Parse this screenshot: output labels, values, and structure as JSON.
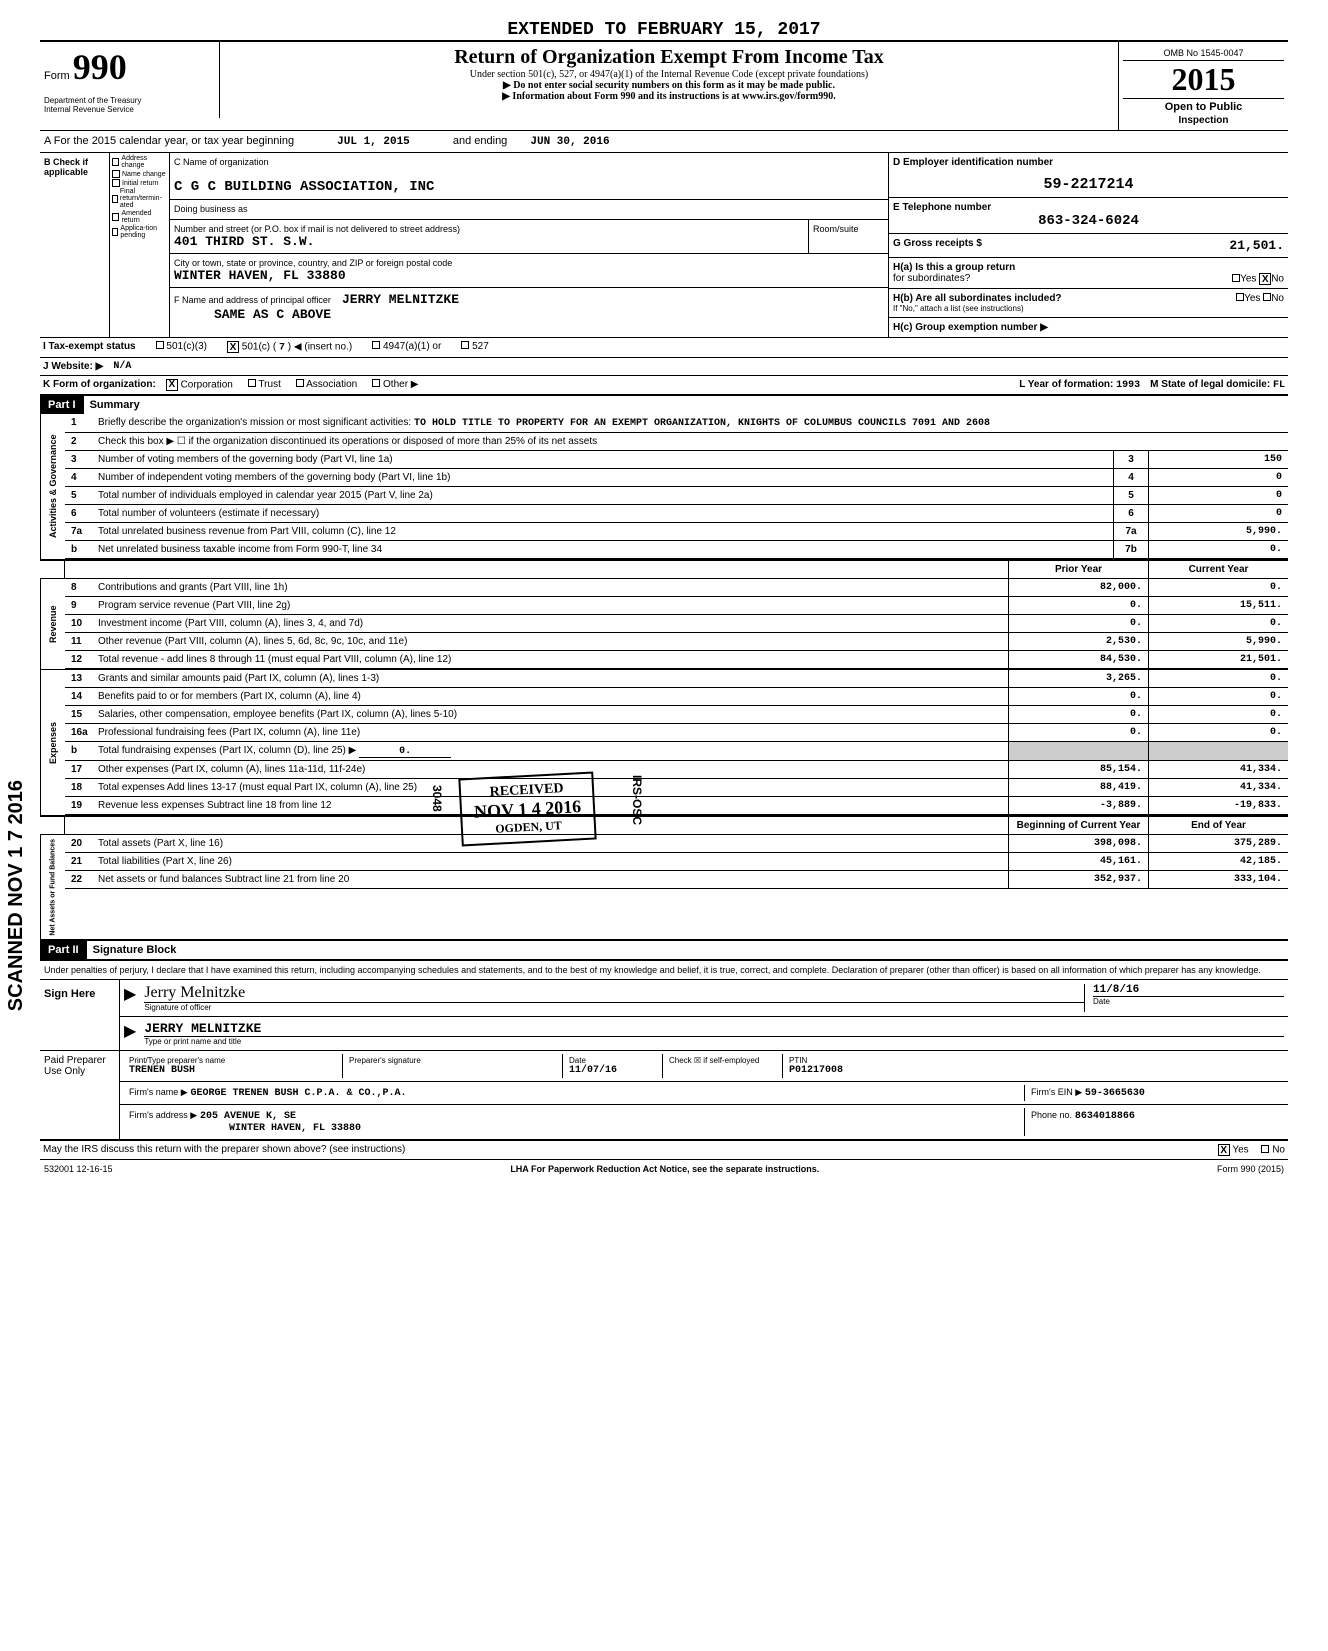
{
  "extended_notice": "EXTENDED TO FEBRUARY 15, 2017",
  "form": {
    "number": "990",
    "form_label": "Form",
    "title": "Return of Organization Exempt From Income Tax",
    "subtitle": "Under section 501(c), 527, or 4947(a)(1) of the Internal Revenue Code (except private foundations)",
    "ssn_notice": "▶ Do not enter social security numbers on this form as it may be made public.",
    "info_notice": "▶ Information about Form 990 and its instructions is at www.irs.gov/form990.",
    "dept": "Department of the Treasury",
    "irs": "Internal Revenue Service",
    "omb": "OMB No 1545-0047",
    "year": "2015",
    "open_public": "Open to Public",
    "inspection": "Inspection"
  },
  "tax_year": {
    "prefix": "A For the 2015 calendar year, or tax year beginning",
    "begin": "JUL 1, 2015",
    "mid": "and ending",
    "end": "JUN 30, 2016"
  },
  "section_b": {
    "check_label": "B Check if applicable",
    "checkboxes": [
      "Address change",
      "Name change",
      "Initial return",
      "Final return/termin-ated",
      "Amended return",
      "Applica-tion pending"
    ],
    "c_label": "C Name of organization",
    "org_name": "C G C BUILDING ASSOCIATION, INC",
    "dba_label": "Doing business as",
    "street_label": "Number and street (or P.O. box if mail is not delivered to street address)",
    "street": "401 THIRD ST. S.W.",
    "room_label": "Room/suite",
    "city_label": "City or town, state or province, country, and ZIP or foreign postal code",
    "city": "WINTER HAVEN, FL  33880",
    "f_label": "F Name and address of principal officer",
    "officer": "JERRY MELNITZKE",
    "officer_addr": "SAME AS C ABOVE"
  },
  "section_d": {
    "d_label": "D Employer identification number",
    "ein": "59-2217214",
    "e_label": "E Telephone number",
    "phone": "863-324-6024",
    "g_label": "G Gross receipts $",
    "gross": "21,501.",
    "ha_label": "H(a) Is this a group return",
    "ha_sub": "for subordinates?",
    "hb_label": "H(b) Are all subordinates included?",
    "hb_note": "If \"No,\" attach a list (see instructions)",
    "hc_label": "H(c) Group exemption number ▶",
    "yes": "Yes",
    "no": "No",
    "x_no": "X"
  },
  "section_i": {
    "label": "I Tax-exempt status",
    "opt1": "501(c)(3)",
    "opt2": "501(c) (",
    "opt2_num": "7",
    "opt2_suffix": ") ◀ (insert no.)",
    "opt3": "4947(a)(1) or",
    "opt4": "527",
    "x": "X"
  },
  "section_j": {
    "label": "J Website: ▶",
    "value": "N/A"
  },
  "section_k": {
    "label": "K Form of organization:",
    "corp": "Corporation",
    "trust": "Trust",
    "assoc": "Association",
    "other": "Other ▶",
    "x": "X",
    "l_label": "L Year of formation:",
    "l_year": "1993",
    "m_label": "M State of legal domicile:",
    "m_state": "FL"
  },
  "part1": {
    "header": "Part I",
    "title": "Summary",
    "line1_label": "Briefly describe the organization's mission or most significant activities:",
    "line1_text": "TO HOLD TITLE TO PROPERTY FOR AN EXEMPT ORGANIZATION, KNIGHTS OF COLUMBUS COUNCILS 7091 AND 2608",
    "line2": "Check this box ▶ ☐ if the organization discontinued its operations or disposed of more than 25% of its net assets",
    "lines": [
      {
        "num": "3",
        "text": "Number of voting members of the governing body (Part VI, line 1a)",
        "box": "3",
        "val": "150"
      },
      {
        "num": "4",
        "text": "Number of independent voting members of the governing body (Part VI, line 1b)",
        "box": "4",
        "val": "0"
      },
      {
        "num": "5",
        "text": "Total number of individuals employed in calendar year 2015 (Part V, line 2a)",
        "box": "5",
        "val": "0"
      },
      {
        "num": "6",
        "text": "Total number of volunteers (estimate if necessary)",
        "box": "6",
        "val": "0"
      },
      {
        "num": "7a",
        "text": "Total unrelated business revenue from Part VIII, column (C), line 12",
        "box": "7a",
        "val": "5,990."
      },
      {
        "num": "b",
        "text": "Net unrelated business taxable income from Form 990-T, line 34",
        "box": "7b",
        "val": "0."
      }
    ],
    "prior_hdr": "Prior Year",
    "current_hdr": "Current Year",
    "revenue_label": "Revenue",
    "expenses_label": "Expenses",
    "netassets_label": "Net Assets or Fund Balances",
    "activities_label": "Activities & Governance",
    "revenue_lines": [
      {
        "num": "8",
        "text": "Contributions and grants (Part VIII, line 1h)",
        "prior": "82,000.",
        "curr": "0."
      },
      {
        "num": "9",
        "text": "Program service revenue (Part VIII, line 2g)",
        "prior": "0.",
        "curr": "15,511."
      },
      {
        "num": "10",
        "text": "Investment income (Part VIII, column (A), lines 3, 4, and 7d)",
        "prior": "0.",
        "curr": "0."
      },
      {
        "num": "11",
        "text": "Other revenue (Part VIII, column (A), lines 5, 6d, 8c, 9c, 10c, and 11e)",
        "prior": "2,530.",
        "curr": "5,990."
      },
      {
        "num": "12",
        "text": "Total revenue - add lines 8 through 11 (must equal Part VIII, column (A), line 12)",
        "prior": "84,530.",
        "curr": "21,501."
      }
    ],
    "expense_lines": [
      {
        "num": "13",
        "text": "Grants and similar amounts paid (Part IX, column (A), lines 1-3)",
        "prior": "3,265.",
        "curr": "0."
      },
      {
        "num": "14",
        "text": "Benefits paid to or for members (Part IX, column (A), line 4)",
        "prior": "0.",
        "curr": "0."
      },
      {
        "num": "15",
        "text": "Salaries, other compensation, employee benefits (Part IX, column (A), lines 5-10)",
        "prior": "0.",
        "curr": "0."
      },
      {
        "num": "16a",
        "text": "Professional fundraising fees (Part IX, column (A), line 11e)",
        "prior": "0.",
        "curr": "0."
      },
      {
        "num": "b",
        "text": "Total fundraising expenses (Part IX, column (D), line 25)    ▶",
        "inline": "0.",
        "prior": "",
        "curr": ""
      },
      {
        "num": "17",
        "text": "Other expenses (Part IX, column (A), lines 11a-11d, 11f-24e)",
        "prior": "85,154.",
        "curr": "41,334."
      },
      {
        "num": "18",
        "text": "Total expenses Add lines 13-17 (must equal Part IX, column (A), line 25)",
        "prior": "88,419.",
        "curr": "41,334."
      },
      {
        "num": "19",
        "text": "Revenue less expenses Subtract line 18 from line 12",
        "prior": "-3,889.",
        "curr": "-19,833."
      }
    ],
    "begin_hdr": "Beginning of Current Year",
    "end_hdr": "End of Year",
    "asset_lines": [
      {
        "num": "20",
        "text": "Total assets (Part X, line 16)",
        "prior": "398,098.",
        "curr": "375,289."
      },
      {
        "num": "21",
        "text": "Total liabilities (Part X, line 26)",
        "prior": "45,161.",
        "curr": "42,185."
      },
      {
        "num": "22",
        "text": "Net assets or fund balances Subtract line 21 from line 20",
        "prior": "352,937.",
        "curr": "333,104."
      }
    ]
  },
  "part2": {
    "header": "Part II",
    "title": "Signature Block",
    "perjury": "Under penalties of perjury, I declare that I have examined this return, including accompanying schedules and statements, and to the best of my knowledge and belief, it is true, correct, and complete. Declaration of preparer (other than officer) is based on all information of which preparer has any knowledge.",
    "sign_here": "Sign Here",
    "sig_officer": "Signature of officer",
    "date_label": "Date",
    "officer_name": "JERRY MELNITZKE",
    "type_print": "Type or print name and title",
    "paid_prep": "Paid Preparer Use Only",
    "print_name_label": "Print/Type preparer's name",
    "prep_name": "TRENEN BUSH",
    "prep_sig_label": "Preparer's signature",
    "prep_date_label": "Date",
    "prep_date": "11/07/16",
    "check_label": "Check ☒ if self-employed",
    "ptin_label": "PTIN",
    "ptin": "P01217008",
    "firm_name_label": "Firm's name ▶",
    "firm_name": "GEORGE TRENEN BUSH C.P.A. & CO.,P.A.",
    "firm_ein_label": "Firm's EIN ▶",
    "firm_ein": "59-3665630",
    "firm_addr_label": "Firm's address ▶",
    "firm_addr": "205 AVENUE K, SE",
    "firm_city": "WINTER HAVEN, FL 33880",
    "phone_label": "Phone no.",
    "phone": "8634018866",
    "discuss": "May the IRS discuss this return with the preparer shown above? (see instructions)",
    "discuss_yes": "Yes",
    "discuss_no": "No",
    "x": "X"
  },
  "footer": {
    "code": "532001 12-16-15",
    "lha": "LHA For Paperwork Reduction Act Notice, see the separate instructions.",
    "form_ref": "Form 990 (2015)"
  },
  "stamps": {
    "received": "RECEIVED",
    "date": "NOV 1 4 2016",
    "ogden": "OGDEN, UT",
    "irs_osc": "IRS-OSC",
    "num": "3048",
    "scanned": "SCANNED NOV 1 7 2016"
  },
  "sig_date_hand": "11/8/16"
}
